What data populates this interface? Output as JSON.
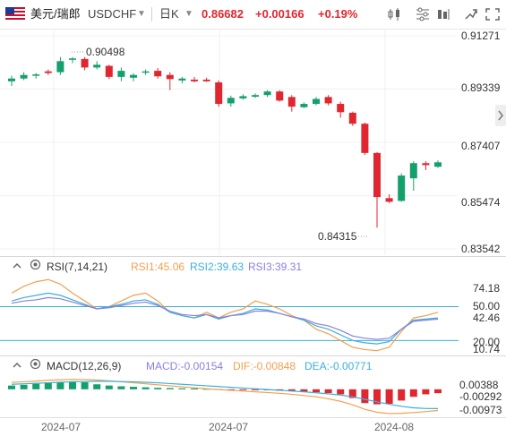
{
  "toolbar": {
    "pair_name": "美元/瑞郎",
    "symbol": "USDCHF",
    "period": "日K",
    "price": "0.86682",
    "change": "+0.00166",
    "change_pct": "+0.19%",
    "up_color": "#e0262f",
    "down_color": "#13a06b",
    "icons": [
      "candlestick-chart-icon",
      "indicator-icon",
      "drawing-tool-icon",
      "compare-icon",
      "fullscreen-icon",
      "settings-icon"
    ]
  },
  "main_chart": {
    "price_labels": [
      "0.91271",
      "0.89339",
      "0.87407",
      "0.85474",
      "0.83542"
    ],
    "high_annotation": "0.90498",
    "low_annotation": "0.84315",
    "collapse_handle": "chevron-right-icon"
  },
  "rsi": {
    "title": "RSI(7,14,21)",
    "rsi1_label": "RSI1:45.06",
    "rsi2_label": "RSI2:39.63",
    "rsi3_label": "RSI3:39.31",
    "colors": {
      "rsi1": "#f0a050",
      "rsi2": "#3ab0d8",
      "rsi3": "#8a7fe0"
    },
    "axis_labels": [
      "74.18",
      "50.00",
      "42.46",
      "20.00",
      "10.74"
    ]
  },
  "macd": {
    "title": "MACD(12,26,9)",
    "macd_label": "MACD:-0.00154",
    "dif_label": "DIF:-0.00848",
    "dea_label": "DEA:-0.00771",
    "axis_labels": [
      "0.00388",
      "-0.00292",
      "-0.00973"
    ]
  },
  "x_axis": [
    "2024-07",
    "2024-07",
    "2024-08"
  ],
  "chart_data": {
    "type": "candlestick",
    "ylim": [
      0.8354,
      0.9127
    ],
    "candles": [
      {
        "o": 0.8962,
        "h": 0.8982,
        "l": 0.8945,
        "c": 0.8972
      },
      {
        "o": 0.8972,
        "h": 0.8995,
        "l": 0.8966,
        "c": 0.8985
      },
      {
        "o": 0.8982,
        "h": 0.8992,
        "l": 0.8972,
        "c": 0.8987
      },
      {
        "o": 0.8998,
        "h": 0.9005,
        "l": 0.8985,
        "c": 0.8992
      },
      {
        "o": 0.8995,
        "h": 0.905,
        "l": 0.8985,
        "c": 0.9035
      },
      {
        "o": 0.904,
        "h": 0.905,
        "l": 0.9028,
        "c": 0.9045
      },
      {
        "o": 0.9043,
        "h": 0.905,
        "l": 0.9002,
        "c": 0.9012
      },
      {
        "o": 0.9012,
        "h": 0.9035,
        "l": 0.9005,
        "c": 0.9022
      },
      {
        "o": 0.9018,
        "h": 0.9022,
        "l": 0.897,
        "c": 0.8978
      },
      {
        "o": 0.8978,
        "h": 0.9012,
        "l": 0.8962,
        "c": 0.9
      },
      {
        "o": 0.8975,
        "h": 0.8992,
        "l": 0.8962,
        "c": 0.8985
      },
      {
        "o": 0.8995,
        "h": 0.9005,
        "l": 0.8985,
        "c": 0.8998
      },
      {
        "o": 0.9,
        "h": 0.901,
        "l": 0.8972,
        "c": 0.898
      },
      {
        "o": 0.8985,
        "h": 0.8995,
        "l": 0.893,
        "c": 0.897
      },
      {
        "o": 0.8965,
        "h": 0.8978,
        "l": 0.8955,
        "c": 0.8972
      },
      {
        "o": 0.8968,
        "h": 0.8978,
        "l": 0.8958,
        "c": 0.8962
      },
      {
        "o": 0.8968,
        "h": 0.8975,
        "l": 0.896,
        "c": 0.8962
      },
      {
        "o": 0.8958,
        "h": 0.8965,
        "l": 0.887,
        "c": 0.888
      },
      {
        "o": 0.8882,
        "h": 0.891,
        "l": 0.887,
        "c": 0.8902
      },
      {
        "o": 0.89,
        "h": 0.8915,
        "l": 0.8895,
        "c": 0.8908
      },
      {
        "o": 0.8906,
        "h": 0.8918,
        "l": 0.8902,
        "c": 0.8912
      },
      {
        "o": 0.8912,
        "h": 0.893,
        "l": 0.8905,
        "c": 0.8925
      },
      {
        "o": 0.8925,
        "h": 0.893,
        "l": 0.8888,
        "c": 0.8892
      },
      {
        "o": 0.8905,
        "h": 0.8912,
        "l": 0.8852,
        "c": 0.887
      },
      {
        "o": 0.8868,
        "h": 0.8885,
        "l": 0.8865,
        "c": 0.888
      },
      {
        "o": 0.888,
        "h": 0.8905,
        "l": 0.8875,
        "c": 0.8898
      },
      {
        "o": 0.8905,
        "h": 0.8912,
        "l": 0.8875,
        "c": 0.8882
      },
      {
        "o": 0.888,
        "h": 0.8888,
        "l": 0.883,
        "c": 0.885
      },
      {
        "o": 0.8848,
        "h": 0.8852,
        "l": 0.88,
        "c": 0.8808
      },
      {
        "o": 0.8808,
        "h": 0.8812,
        "l": 0.8695,
        "c": 0.8702
      },
      {
        "o": 0.8702,
        "h": 0.8705,
        "l": 0.8431,
        "c": 0.8542
      },
      {
        "o": 0.8538,
        "h": 0.8552,
        "l": 0.852,
        "c": 0.8525
      },
      {
        "o": 0.8528,
        "h": 0.8628,
        "l": 0.8525,
        "c": 0.862
      },
      {
        "o": 0.861,
        "h": 0.8672,
        "l": 0.8565,
        "c": 0.8665
      },
      {
        "o": 0.8665,
        "h": 0.8672,
        "l": 0.864,
        "c": 0.8658
      },
      {
        "o": 0.8652,
        "h": 0.8675,
        "l": 0.8648,
        "c": 0.8668
      }
    ],
    "rsi1": [
      62,
      68,
      72,
      74,
      70,
      62,
      55,
      48,
      50,
      55,
      60,
      62,
      55,
      45,
      42,
      40,
      45,
      40,
      45,
      48,
      55,
      52,
      48,
      42,
      38,
      30,
      26,
      20,
      14,
      12,
      11,
      14,
      28,
      40,
      42,
      45
    ],
    "rsi2": [
      55,
      58,
      60,
      62,
      60,
      56,
      52,
      48,
      50,
      52,
      55,
      56,
      52,
      45,
      42,
      40,
      43,
      39,
      42,
      44,
      48,
      47,
      44,
      41,
      38,
      33,
      30,
      25,
      20,
      18,
      17,
      19,
      30,
      38,
      39,
      40
    ],
    "rsi3": [
      53,
      55,
      56,
      58,
      57,
      54,
      51,
      48,
      49,
      51,
      53,
      54,
      51,
      46,
      43,
      42,
      43,
      40,
      42,
      43,
      46,
      46,
      44,
      41,
      39,
      35,
      33,
      29,
      24,
      22,
      21,
      22,
      30,
      37,
      38,
      39
    ],
    "rsi_ylim": [
      10.74,
      74.18
    ],
    "macd_hist": [
      0.0015,
      0.0018,
      0.0022,
      0.0028,
      0.003,
      0.0032,
      0.0028,
      0.002,
      0.0015,
      0.0012,
      0.001,
      0.0008,
      0.0006,
      0.0005,
      0.0004,
      0.0003,
      0.0002,
      0.0001,
      -0.0001,
      -0.0002,
      -0.0003,
      -0.0004,
      -0.0006,
      -0.0008,
      -0.001,
      -0.0012,
      -0.0015,
      -0.002,
      -0.0035,
      -0.0055,
      -0.006,
      -0.0058,
      -0.0045,
      -0.003,
      -0.002,
      -0.00154
    ],
    "dif": [
      0.0028,
      0.003,
      0.0033,
      0.0036,
      0.0038,
      0.004,
      0.0039,
      0.0037,
      0.0034,
      0.003,
      0.0026,
      0.0022,
      0.0018,
      0.0014,
      0.001,
      0.0006,
      0.0002,
      -0.0001,
      -0.0004,
      -0.0007,
      -0.001,
      -0.0013,
      -0.0016,
      -0.002,
      -0.0025,
      -0.003,
      -0.0038,
      -0.0048,
      -0.0062,
      -0.008,
      -0.0092,
      -0.0097,
      -0.0096,
      -0.0093,
      -0.0089,
      -0.00848
    ],
    "dea": [
      0.002,
      0.0022,
      0.0024,
      0.0026,
      0.0028,
      0.003,
      0.0031,
      0.0032,
      0.0032,
      0.0031,
      0.003,
      0.0028,
      0.0026,
      0.0023,
      0.002,
      0.0017,
      0.0014,
      0.0011,
      0.0008,
      0.0005,
      0.0002,
      -0.0001,
      -0.0004,
      -0.0007,
      -0.001,
      -0.0014,
      -0.0018,
      -0.0023,
      -0.003,
      -0.004,
      -0.005,
      -0.006,
      -0.0068,
      -0.0074,
      -0.0077,
      -0.00771
    ],
    "macd_ylim": [
      -0.00973,
      0.00388
    ]
  }
}
